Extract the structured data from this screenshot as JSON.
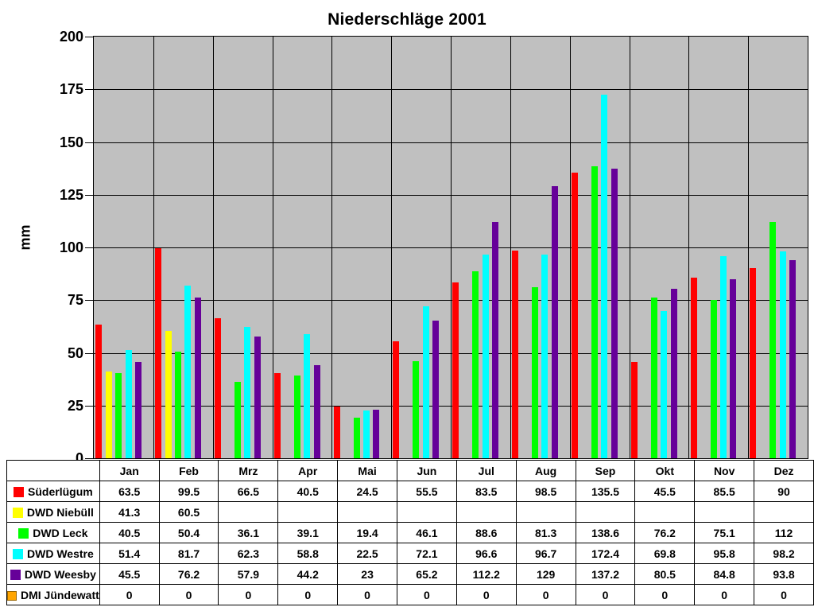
{
  "chart_data": {
    "type": "bar",
    "title": "Niederschläge 2001",
    "ylabel": "mm",
    "xlabel": "",
    "ylim": [
      0,
      200
    ],
    "ytick_step": 25,
    "grid": true,
    "gridline_color": "#000000",
    "plot_background": "#C0C0C0",
    "legend_position": "table-left",
    "categories": [
      "Jan",
      "Feb",
      "Mrz",
      "Apr",
      "Mai",
      "Jun",
      "Jul",
      "Aug",
      "Sep",
      "Okt",
      "Nov",
      "Dez"
    ],
    "series": [
      {
        "name": "Süderlügum",
        "color": "#FF0000",
        "values": [
          63.5,
          99.5,
          66.5,
          40.5,
          24.5,
          55.5,
          83.5,
          98.5,
          135.5,
          45.5,
          85.5,
          90
        ]
      },
      {
        "name": "DWD Niebüll",
        "color": "#FFFF00",
        "values": [
          41.3,
          60.5,
          null,
          null,
          null,
          null,
          null,
          null,
          null,
          null,
          null,
          null
        ]
      },
      {
        "name": "DWD Leck",
        "color": "#00FF00",
        "values": [
          40.5,
          50.4,
          36.1,
          39.1,
          19.4,
          46.1,
          88.6,
          81.3,
          138.6,
          76.2,
          75.1,
          112
        ]
      },
      {
        "name": "DWD Westre",
        "color": "#00FFFF",
        "values": [
          51.4,
          81.7,
          62.3,
          58.8,
          22.5,
          72.1,
          96.6,
          96.7,
          172.4,
          69.8,
          95.8,
          98.2
        ]
      },
      {
        "name": "DWD Weesby",
        "color": "#660099",
        "values": [
          45.5,
          76.2,
          57.9,
          44.2,
          23,
          65.2,
          112.2,
          129,
          137.2,
          80.5,
          84.8,
          93.8
        ]
      },
      {
        "name": "DMI Jündewatt",
        "color": "#FFA500",
        "swatch_border": "#996600",
        "values": [
          0,
          0,
          0,
          0,
          0,
          0,
          0,
          0,
          0,
          0,
          0,
          0
        ]
      }
    ]
  }
}
